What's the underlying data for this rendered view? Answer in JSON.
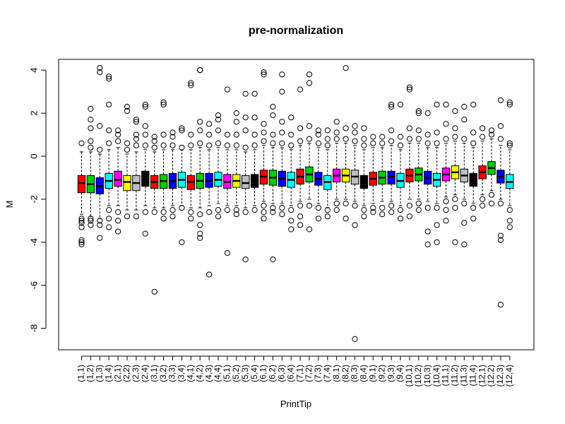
{
  "chart_data": {
    "type": "boxplot",
    "title": "pre-normalization",
    "xlabel": "PrintTip",
    "ylabel": "M",
    "ylim": [
      -9,
      4.5
    ],
    "yticks": [
      -8,
      -6,
      -4,
      -2,
      0,
      2,
      4
    ],
    "grid": false,
    "legend": "none",
    "categories": [
      "(1,1)",
      "(1,2)",
      "(1,3)",
      "(1,4)",
      "(2,1)",
      "(2,2)",
      "(2,3)",
      "(2,4)",
      "(3,1)",
      "(3,2)",
      "(3,3)",
      "(3,4)",
      "(4,1)",
      "(4,2)",
      "(4,3)",
      "(4,4)",
      "(5,1)",
      "(5,2)",
      "(5,3)",
      "(5,4)",
      "(6,1)",
      "(6,2)",
      "(6,3)",
      "(6,4)",
      "(7,1)",
      "(7,2)",
      "(7,3)",
      "(7,4)",
      "(8,1)",
      "(8,2)",
      "(8,3)",
      "(8,4)",
      "(9,1)",
      "(9,2)",
      "(9,3)",
      "(9,4)",
      "(10,1)",
      "(10,2)",
      "(10,3)",
      "(10,4)",
      "(11,1)",
      "(11,2)",
      "(11,3)",
      "(11,4)",
      "(12,1)",
      "(12,2)",
      "(12,3)",
      "(12,4)"
    ],
    "colors": [
      "#ff0000",
      "#00cd00",
      "#0000ff",
      "#00ffff",
      "#ff00ff",
      "#ffff00",
      "#bebebe",
      "#000000",
      "#ff0000",
      "#00cd00",
      "#0000ff",
      "#00ffff"
    ],
    "boxes": [
      {
        "q1": -1.7,
        "median": -1.25,
        "q3": -0.9,
        "wlo": -2.7,
        "whi": 0.2,
        "out": [
          -2.9,
          -3.0,
          -3.1,
          -3.3,
          -3.9,
          -4.0,
          -4.1,
          0.6
        ]
      },
      {
        "q1": -1.7,
        "median": -1.3,
        "q3": -0.9,
        "wlo": -2.8,
        "whi": 0.2,
        "out": [
          -2.9,
          -3.0,
          -3.2,
          0.4,
          0.7,
          1.3,
          1.7,
          2.2
        ]
      },
      {
        "q1": -1.75,
        "median": -1.4,
        "q3": -1.0,
        "wlo": -2.9,
        "whi": 0.1,
        "out": [
          -3.0,
          -3.2,
          -3.8,
          0.3,
          1.4,
          3.9,
          4.1
        ]
      },
      {
        "q1": -1.5,
        "median": -1.15,
        "q3": -0.8,
        "wlo": -2.3,
        "whi": 0.3,
        "out": [
          -2.5,
          -2.9,
          -3.3,
          0.6,
          1.2,
          2.4,
          3.6,
          3.7
        ]
      },
      {
        "q1": -1.4,
        "median": -1.1,
        "q3": -0.7,
        "wlo": -2.3,
        "whi": 0.4,
        "out": [
          -2.6,
          -3.0,
          -3.5,
          0.7,
          1.0,
          1.2
        ]
      },
      {
        "q1": -1.6,
        "median": -1.2,
        "q3": -0.9,
        "wlo": -2.5,
        "whi": 0.1,
        "out": [
          -2.8,
          0.3,
          0.6,
          2.1,
          2.3
        ]
      },
      {
        "q1": -1.6,
        "median": -1.25,
        "q3": -0.9,
        "wlo": -2.5,
        "whi": 0.2,
        "out": [
          -2.8,
          0.5,
          0.8,
          1.0,
          1.6,
          1.7
        ]
      },
      {
        "q1": -1.4,
        "median": -1.05,
        "q3": -0.7,
        "wlo": -2.3,
        "whi": 0.3,
        "out": [
          -2.6,
          -3.6,
          0.5,
          1.0,
          1.4,
          2.3,
          2.4
        ]
      },
      {
        "q1": -1.5,
        "median": -1.2,
        "q3": -0.9,
        "wlo": -2.4,
        "whi": 0.2,
        "out": [
          -2.6,
          -6.3,
          0.4,
          0.7,
          0.9
        ]
      },
      {
        "q1": -1.5,
        "median": -1.15,
        "q3": -0.85,
        "wlo": -2.4,
        "whi": 0.3,
        "out": [
          -2.6,
          -2.9,
          0.5,
          1.0,
          2.4,
          2.5
        ]
      },
      {
        "q1": -1.5,
        "median": -1.15,
        "q3": -0.8,
        "wlo": -2.3,
        "whi": 0.3,
        "out": [
          -2.5,
          -2.8,
          0.5,
          0.9,
          1.1
        ]
      },
      {
        "q1": -1.45,
        "median": -1.1,
        "q3": -0.75,
        "wlo": -2.3,
        "whi": 0.3,
        "out": [
          -2.4,
          -4.0,
          0.4,
          1.2,
          1.3
        ]
      },
      {
        "q1": -1.55,
        "median": -1.2,
        "q3": -0.9,
        "wlo": -2.4,
        "whi": 0.3,
        "out": [
          -2.6,
          -2.9,
          0.5,
          1.0,
          3.3,
          3.4
        ]
      },
      {
        "q1": -1.5,
        "median": -1.15,
        "q3": -0.8,
        "wlo": -2.4,
        "whi": 0.4,
        "out": [
          -2.7,
          -3.2,
          -3.6,
          -3.8,
          0.6,
          1.2,
          1.6,
          4.0,
          4.0
        ]
      },
      {
        "q1": -1.45,
        "median": -1.15,
        "q3": -0.8,
        "wlo": -2.3,
        "whi": 0.3,
        "out": [
          -2.6,
          -5.5,
          0.5,
          1.0,
          1.5
        ]
      },
      {
        "q1": -1.4,
        "median": -1.1,
        "q3": -0.75,
        "wlo": -2.2,
        "whi": 0.4,
        "out": [
          -2.5,
          -2.8,
          0.6,
          1.2,
          1.7,
          1.9
        ]
      },
      {
        "q1": -1.5,
        "median": -1.2,
        "q3": -0.85,
        "wlo": -2.3,
        "whi": 0.3,
        "out": [
          -2.5,
          -4.5,
          0.5,
          1.0,
          3.1
        ]
      },
      {
        "q1": -1.45,
        "median": -1.15,
        "q3": -0.85,
        "wlo": -2.3,
        "whi": 0.3,
        "out": [
          -2.5,
          -2.7,
          0.5,
          1.0,
          1.6,
          2.0
        ]
      },
      {
        "q1": -1.5,
        "median": -1.25,
        "q3": -0.9,
        "wlo": -2.4,
        "whi": 0.2,
        "out": [
          -2.6,
          -4.8,
          0.4,
          1.2,
          1.8,
          2.9
        ]
      },
      {
        "q1": -1.45,
        "median": -1.15,
        "q3": -0.85,
        "wlo": -2.3,
        "whi": 0.3,
        "out": [
          -2.5,
          0.5,
          1.0,
          1.8,
          2.9
        ]
      },
      {
        "q1": -1.3,
        "median": -0.95,
        "q3": -0.65,
        "wlo": -2.1,
        "whi": 0.5,
        "out": [
          -2.3,
          -2.6,
          -2.9,
          0.7,
          1.1,
          1.5,
          3.8,
          3.9
        ]
      },
      {
        "q1": -1.35,
        "median": -1.0,
        "q3": -0.65,
        "wlo": -2.2,
        "whi": 0.4,
        "out": [
          -2.4,
          -2.6,
          -4.8,
          0.6,
          1.0,
          1.9,
          2.3
        ]
      },
      {
        "q1": -1.4,
        "median": -1.05,
        "q3": -0.7,
        "wlo": -2.2,
        "whi": 0.4,
        "out": [
          -2.4,
          -2.7,
          0.6,
          1.1,
          1.6,
          3.0,
          3.8
        ]
      },
      {
        "q1": -1.45,
        "median": -1.1,
        "q3": -0.75,
        "wlo": -2.3,
        "whi": 0.3,
        "out": [
          -2.5,
          -3.0,
          -3.4,
          0.5,
          1.0,
          1.8
        ]
      },
      {
        "q1": -1.3,
        "median": -0.95,
        "q3": -0.6,
        "wlo": -2.1,
        "whi": 0.5,
        "out": [
          -2.3,
          -2.8,
          -3.2,
          0.7,
          1.3,
          3.1
        ]
      },
      {
        "q1": -1.2,
        "median": -0.85,
        "q3": -0.5,
        "wlo": -2.0,
        "whi": 0.6,
        "out": [
          -2.3,
          -3.4,
          0.8,
          1.4,
          3.4,
          3.8
        ]
      },
      {
        "q1": -1.35,
        "median": -1.05,
        "q3": -0.75,
        "wlo": -2.2,
        "whi": 0.4,
        "out": [
          -2.4,
          -2.9,
          0.6,
          1.0,
          1.2
        ]
      },
      {
        "q1": -1.55,
        "median": -1.2,
        "q3": -0.9,
        "wlo": -2.4,
        "whi": 0.3,
        "out": [
          -2.5,
          -2.8,
          0.5,
          0.8,
          1.2
        ]
      },
      {
        "q1": -1.2,
        "median": -0.9,
        "q3": -0.6,
        "wlo": -2.0,
        "whi": 0.6,
        "out": [
          -2.2,
          -2.5,
          0.8,
          1.1,
          1.6
        ]
      },
      {
        "q1": -1.2,
        "median": -0.9,
        "q3": -0.6,
        "wlo": -2.0,
        "whi": 0.6,
        "out": [
          -2.2,
          -2.9,
          0.8,
          1.3,
          4.1
        ]
      },
      {
        "q1": -1.3,
        "median": -0.95,
        "q3": -0.65,
        "wlo": -2.1,
        "whi": 0.5,
        "out": [
          -2.3,
          -3.2,
          -8.5,
          0.7,
          1.1,
          1.4
        ]
      },
      {
        "q1": -1.5,
        "median": -1.2,
        "q3": -0.9,
        "wlo": -2.3,
        "whi": 0.3,
        "out": [
          -2.5,
          -2.8,
          0.5,
          0.8,
          1.3
        ]
      },
      {
        "q1": -1.35,
        "median": -1.05,
        "q3": -0.75,
        "wlo": -2.2,
        "whi": 0.4,
        "out": [
          -2.4,
          -2.6,
          0.6,
          0.9
        ]
      },
      {
        "q1": -1.3,
        "median": -1.0,
        "q3": -0.7,
        "wlo": -2.1,
        "whi": 0.4,
        "out": [
          -2.4,
          -2.7,
          0.6,
          0.9
        ]
      },
      {
        "q1": -1.3,
        "median": -0.95,
        "q3": -0.7,
        "wlo": -2.1,
        "whi": 0.5,
        "out": [
          -2.3,
          -2.6,
          0.7,
          1.2,
          2.3,
          2.4
        ]
      },
      {
        "q1": -1.45,
        "median": -1.15,
        "q3": -0.8,
        "wlo": -2.3,
        "whi": 0.3,
        "out": [
          -2.5,
          -2.9,
          0.5,
          0.9,
          2.4
        ]
      },
      {
        "q1": -1.2,
        "median": -0.9,
        "q3": -0.6,
        "wlo": -2.0,
        "whi": 0.6,
        "out": [
          -2.3,
          -2.8,
          0.8,
          1.3,
          3.1,
          3.2
        ]
      },
      {
        "q1": -1.15,
        "median": -0.85,
        "q3": -0.55,
        "wlo": -2.0,
        "whi": 0.6,
        "out": [
          -2.2,
          -2.5,
          0.8,
          1.2,
          2.0,
          2.1
        ]
      },
      {
        "q1": -1.3,
        "median": -1.0,
        "q3": -0.7,
        "wlo": -2.1,
        "whi": 0.4,
        "out": [
          -2.4,
          -3.5,
          -4.1,
          0.6,
          1.0,
          2.0
        ]
      },
      {
        "q1": -1.4,
        "median": -1.1,
        "q3": -0.8,
        "wlo": -2.2,
        "whi": 0.4,
        "out": [
          -2.4,
          -3.2,
          -4.0,
          0.6,
          1.1,
          2.4
        ]
      },
      {
        "q1": -1.15,
        "median": -0.85,
        "q3": -0.55,
        "wlo": -1.9,
        "whi": 0.6,
        "out": [
          -2.1,
          -2.5,
          -3.0,
          0.8,
          1.5,
          2.4
        ]
      },
      {
        "q1": -1.05,
        "median": -0.75,
        "q3": -0.45,
        "wlo": -1.8,
        "whi": 0.7,
        "out": [
          -2.0,
          -2.4,
          -4.0,
          0.9,
          1.3,
          2.1
        ]
      },
      {
        "q1": -1.2,
        "median": -0.9,
        "q3": -0.6,
        "wlo": -2.0,
        "whi": 0.6,
        "out": [
          -2.2,
          -3.1,
          -4.1,
          0.8,
          1.7,
          2.3
        ]
      },
      {
        "q1": -1.4,
        "median": -1.1,
        "q3": -0.8,
        "wlo": -2.2,
        "whi": 0.4,
        "out": [
          -2.4,
          -2.9,
          0.6,
          1.1,
          2.4
        ]
      },
      {
        "q1": -1.05,
        "median": -0.75,
        "q3": -0.45,
        "wlo": -1.8,
        "whi": 0.7,
        "out": [
          -2.0,
          -2.3,
          0.9,
          1.3
        ]
      },
      {
        "q1": -0.85,
        "median": -0.55,
        "q3": -0.25,
        "wlo": -1.6,
        "whi": 0.8,
        "out": [
          -1.8,
          -2.2,
          1.0,
          1.2
        ]
      },
      {
        "q1": -1.25,
        "median": -0.95,
        "q3": -0.65,
        "wlo": -2.0,
        "whi": 0.5,
        "out": [
          -2.2,
          -3.7,
          -3.9,
          -6.9,
          0.8,
          1.4,
          2.6
        ]
      },
      {
        "q1": -1.5,
        "median": -1.2,
        "q3": -0.85,
        "wlo": -2.3,
        "whi": 0.3,
        "out": [
          -2.5,
          -3.0,
          -3.3,
          0.5,
          0.6,
          2.4,
          2.5
        ]
      }
    ]
  }
}
